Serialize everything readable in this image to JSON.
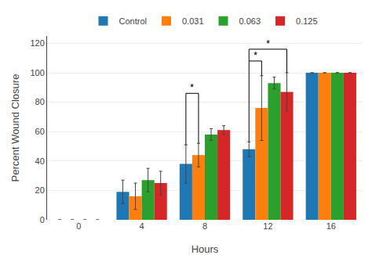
{
  "chart_data": {
    "type": "bar",
    "categories": [
      "0",
      "4",
      "8",
      "12",
      "16"
    ],
    "xlabel": "Hours",
    "ylabel": "Percent Wound Closure",
    "series": [
      {
        "name": "Control",
        "values": [
          0,
          19,
          38,
          48,
          100
        ],
        "errors": [
          0,
          8,
          13,
          5,
          0
        ]
      },
      {
        "name": "0.031",
        "values": [
          0,
          16,
          44,
          76,
          100
        ],
        "errors": [
          0,
          9,
          8,
          22,
          0
        ]
      },
      {
        "name": "0.063",
        "values": [
          0,
          27,
          58,
          93,
          100
        ],
        "errors": [
          0,
          8,
          4,
          4,
          0
        ]
      },
      {
        "name": "0.125",
        "values": [
          0,
          25,
          61,
          87,
          100
        ],
        "errors": [
          0,
          8,
          3,
          13,
          0
        ]
      }
    ],
    "ylim": [
      0,
      125
    ],
    "yticks": [
      0,
      20,
      40,
      60,
      80,
      100,
      120
    ],
    "grid": true,
    "legend": "top",
    "annotations": [
      {
        "text": "*",
        "category": "8",
        "from": "Control",
        "to": "0.031",
        "y": 86,
        "y_low_from": 51,
        "y_low_to": 52
      },
      {
        "text": "*",
        "category": "12",
        "from": "Control",
        "to": "0.031",
        "y": 108,
        "y_low_from": 53,
        "y_low_to": 98
      },
      {
        "text": "*",
        "category": "12",
        "from": "Control",
        "to": "0.125",
        "y": 116,
        "y_low_from": 108,
        "y_low_to": 100
      }
    ]
  }
}
